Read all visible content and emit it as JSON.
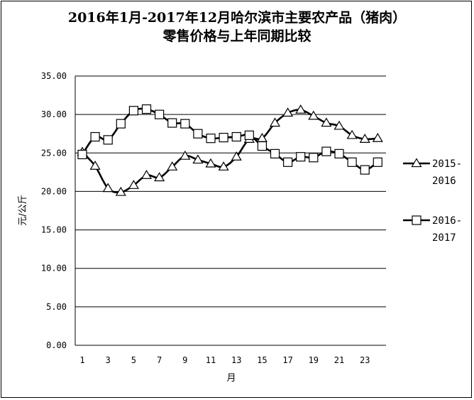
{
  "chart_data": {
    "type": "line",
    "title_line1": "2016年1月-2017年12月哈尔滨市主要农产品（猪肉）",
    "title_line2": "零售价格与上年同期比较",
    "ylabel": "元/公斤",
    "xlabel": "月",
    "ylim": [
      0,
      35
    ],
    "y_ticks": [
      "0.00",
      "5.00",
      "10.00",
      "15.00",
      "20.00",
      "25.00",
      "30.00",
      "35.00"
    ],
    "x_ticks": [
      "1",
      "3",
      "5",
      "7",
      "9",
      "11",
      "13",
      "15",
      "17",
      "19",
      "21",
      "23"
    ],
    "x": [
      1,
      2,
      3,
      4,
      5,
      6,
      7,
      8,
      9,
      10,
      11,
      12,
      13,
      14,
      15,
      16,
      17,
      18,
      19,
      20,
      21,
      22,
      23,
      24
    ],
    "grid": true,
    "legend_placement": "right",
    "series": [
      {
        "name": "2015-2016",
        "label_line1": "2015-",
        "label_line2": "2016",
        "marker": "triangle",
        "color": "#000000",
        "values": [
          25.1,
          23.3,
          20.4,
          19.9,
          20.8,
          22.1,
          21.8,
          23.2,
          24.6,
          24.1,
          23.6,
          23.2,
          24.5,
          26.8,
          26.9,
          28.9,
          30.2,
          30.6,
          29.8,
          28.9,
          28.5,
          27.3,
          26.8,
          26.9
        ]
      },
      {
        "name": "2016-2017",
        "label_line1": "2016-",
        "label_line2": "2017",
        "marker": "square",
        "color": "#000000",
        "values": [
          24.8,
          27.1,
          26.7,
          28.8,
          30.5,
          30.7,
          30.0,
          28.9,
          28.8,
          27.5,
          26.9,
          27.0,
          27.1,
          27.3,
          25.9,
          24.9,
          23.8,
          24.5,
          24.4,
          25.2,
          24.9,
          23.8,
          22.8,
          23.8
        ]
      }
    ]
  }
}
